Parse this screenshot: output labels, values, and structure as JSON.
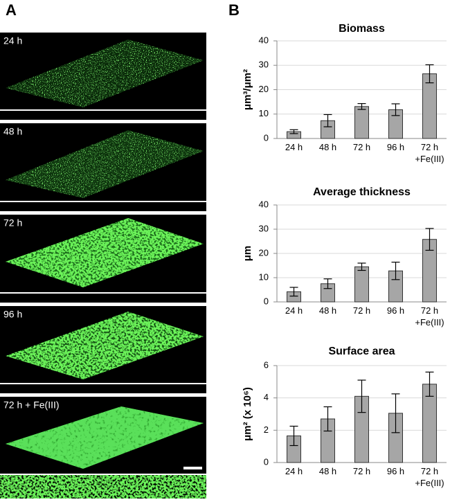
{
  "panels": {
    "a": "A",
    "b": "B"
  },
  "images": [
    "24 h",
    "48 h",
    "72 h",
    "96 h",
    "72 h + Fe(III)"
  ],
  "chart_data": [
    {
      "type": "bar",
      "title": "Biomass",
      "y_label": "μm³/μm²",
      "categories": [
        "24 h",
        "48 h",
        "72 h",
        "96 h",
        "72 h\n+Fe(III)"
      ],
      "values": [
        2.8,
        7.3,
        13.1,
        11.8,
        26.5
      ],
      "errors": [
        0.8,
        2.5,
        1.2,
        2.4,
        3.7
      ],
      "color": "#a6a6a6",
      "ylim": [
        0,
        40
      ],
      "yticks": [
        0,
        10,
        20,
        30,
        40
      ],
      "grid": true
    },
    {
      "type": "bar",
      "title": "Average thickness",
      "y_label": "μm",
      "categories": [
        "24 h",
        "48 h",
        "72 h",
        "96 h",
        "72 h\n+Fe(III)"
      ],
      "values": [
        4.2,
        7.5,
        14.5,
        12.8,
        25.8
      ],
      "errors": [
        1.8,
        2.0,
        1.5,
        3.6,
        4.5
      ],
      "color": "#a6a6a6",
      "ylim": [
        0,
        40
      ],
      "yticks": [
        0,
        10,
        20,
        30,
        40
      ],
      "grid": true
    },
    {
      "type": "bar",
      "title": "Surface area",
      "y_label": "μm² (x 10⁶)",
      "categories": [
        "24 h",
        "48 h",
        "72 h",
        "96 h",
        "72 h\n+Fe(III)"
      ],
      "values": [
        1.65,
        2.7,
        4.1,
        3.05,
        4.85
      ],
      "errors": [
        0.6,
        0.75,
        1.0,
        1.2,
        0.75
      ],
      "color": "#a6a6a6",
      "ylim": [
        0,
        6
      ],
      "yticks": [
        0,
        2,
        4,
        6
      ],
      "grid": true
    }
  ]
}
